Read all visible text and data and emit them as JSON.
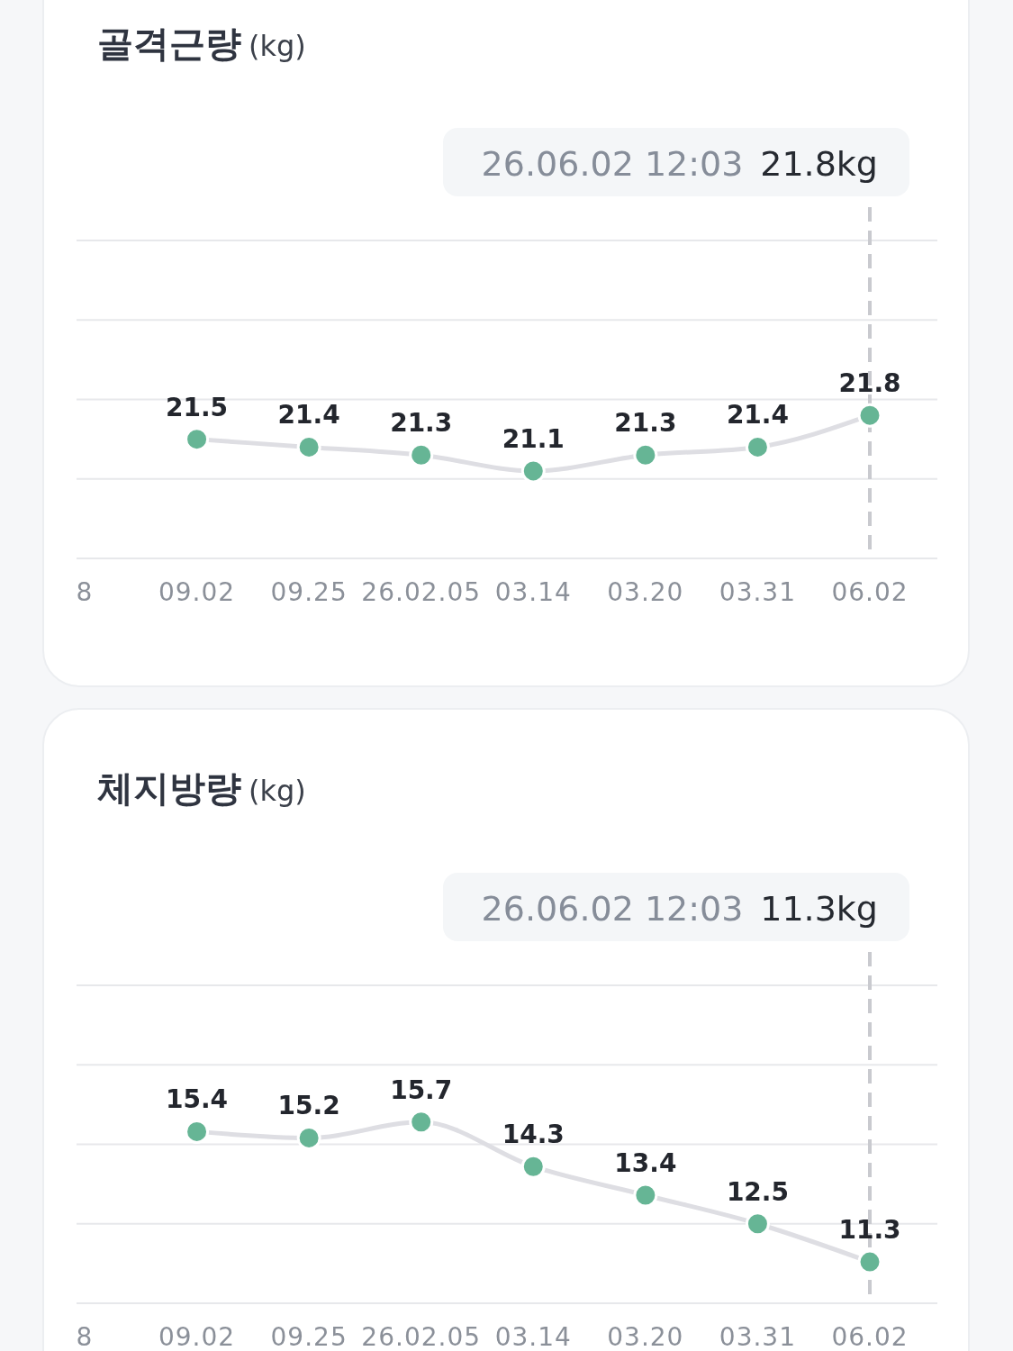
{
  "chart_data": [
    {
      "type": "line",
      "title": "골격근량",
      "ylabel": "(kg)",
      "categories": [
        "8",
        "09.02",
        "09.25",
        "26.02.05",
        "03.14",
        "03.20",
        "03.31",
        "06.02"
      ],
      "series": [
        {
          "color": "#66b595",
          "values": [
            null,
            21.5,
            21.4,
            21.3,
            21.1,
            21.3,
            21.4,
            21.8
          ]
        }
      ],
      "ylim": [
        20,
        24
      ],
      "yticks": [
        {
          "value": 20,
          "label": null
        },
        {
          "value": 21,
          "label": null
        },
        {
          "value": 22,
          "label": null
        },
        {
          "value": 23,
          "label": null
        },
        {
          "value": 24,
          "label": null
        }
      ],
      "tick_labels": "x",
      "grid": "y",
      "marker": "circle",
      "data_labels": true,
      "ref_lines": [
        {
          "axis": "x",
          "value": "06.02",
          "line_style": "dashed",
          "color": "#c9cacf"
        }
      ],
      "annotations": [
        "26.06.02 12:03",
        "21.8kg"
      ]
    },
    {
      "type": "line",
      "title": "체지방량",
      "ylabel": "(kg)",
      "categories": [
        "8",
        "09.02",
        "09.25",
        "26.02.05",
        "03.14",
        "03.20",
        "03.31",
        "06.02"
      ],
      "series": [
        {
          "color": "#66b595",
          "values": [
            null,
            15.4,
            15.2,
            15.7,
            14.3,
            13.4,
            12.5,
            11.3
          ]
        }
      ],
      "ylim": [
        10,
        20
      ],
      "yticks": [
        {
          "value": 10,
          "label": null
        },
        {
          "value": 12.5,
          "label": null
        },
        {
          "value": 15,
          "label": null
        },
        {
          "value": 17.5,
          "label": null
        },
        {
          "value": 20,
          "label": null
        }
      ],
      "tick_labels": "x",
      "grid": "y",
      "marker": "circle",
      "data_labels": true,
      "ref_lines": [
        {
          "axis": "x",
          "value": "06.02",
          "line_style": "dashed",
          "color": "#c9cacf"
        }
      ],
      "annotations": [
        "26.06.02 12:03",
        "11.3kg"
      ]
    }
  ]
}
